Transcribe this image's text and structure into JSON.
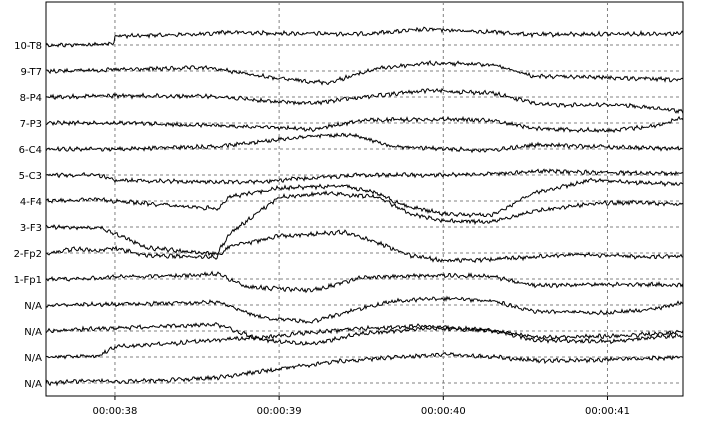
{
  "chart_data": {
    "type": "line",
    "title": "",
    "xlabel": "",
    "ylabel": "",
    "grid": true,
    "x_ticks": [
      "00:00:38",
      "00:00:39",
      "00:00:40",
      "00:00:41"
    ],
    "x_range": [
      "00:00:37.58",
      "00:00:41.46"
    ],
    "channel_labels": [
      "10-T8",
      "9-T7",
      "8-P4",
      "7-P3",
      "6-C4",
      "5-C3",
      "4-F4",
      "3-F3",
      "2-Fp2",
      "1-Fp1",
      "N/A",
      "N/A",
      "N/A",
      "N/A"
    ],
    "series": [
      {
        "name": "10-T8",
        "points": [
          [
            37.6,
            0
          ],
          [
            37.99,
            0.05
          ],
          [
            38.0,
            0.7
          ],
          [
            38.6,
            0.85
          ],
          [
            38.62,
            1.0
          ],
          [
            39.0,
            0.9
          ],
          [
            39.5,
            0.85
          ],
          [
            39.9,
            1.2
          ],
          [
            40.3,
            1.0
          ],
          [
            40.55,
            0.8
          ],
          [
            41.1,
            0.85
          ],
          [
            41.46,
            0.9
          ]
        ]
      },
      {
        "name": "9-T7",
        "points": [
          [
            37.6,
            0
          ],
          [
            38.0,
            0.1
          ],
          [
            38.55,
            0.25
          ],
          [
            38.62,
            0.15
          ],
          [
            39.0,
            -0.6
          ],
          [
            39.3,
            -0.9
          ],
          [
            39.6,
            0.2
          ],
          [
            39.9,
            0.6
          ],
          [
            40.3,
            0.5
          ],
          [
            40.55,
            -0.4
          ],
          [
            41.0,
            -0.5
          ],
          [
            41.46,
            -0.7
          ]
        ]
      },
      {
        "name": "8-P4",
        "points": [
          [
            37.6,
            0
          ],
          [
            38.0,
            0.1
          ],
          [
            38.62,
            0.05
          ],
          [
            38.9,
            -0.3
          ],
          [
            39.2,
            -0.5
          ],
          [
            39.5,
            0
          ],
          [
            39.9,
            0.5
          ],
          [
            40.3,
            0.3
          ],
          [
            40.6,
            -0.6
          ],
          [
            41.1,
            -0.6
          ],
          [
            41.3,
            -0.9
          ],
          [
            41.46,
            -1.1
          ]
        ]
      },
      {
        "name": "7-P3",
        "points": [
          [
            37.6,
            0
          ],
          [
            38.0,
            0
          ],
          [
            38.62,
            -0.2
          ],
          [
            38.9,
            -0.3
          ],
          [
            39.2,
            -0.5
          ],
          [
            39.5,
            0.2
          ],
          [
            40.0,
            0.3
          ],
          [
            40.3,
            0.2
          ],
          [
            40.55,
            -0.4
          ],
          [
            41.0,
            -0.6
          ],
          [
            41.3,
            -0.2
          ],
          [
            41.46,
            0.4
          ]
        ]
      },
      {
        "name": "6-C4",
        "points": [
          [
            37.6,
            0
          ],
          [
            38.0,
            0
          ],
          [
            38.62,
            0.2
          ],
          [
            38.9,
            0.6
          ],
          [
            39.2,
            1.0
          ],
          [
            39.45,
            1.05
          ],
          [
            39.7,
            0.2
          ],
          [
            40.0,
            0
          ],
          [
            40.3,
            -0.1
          ],
          [
            40.55,
            0.3
          ],
          [
            40.9,
            0.2
          ],
          [
            41.2,
            0.1
          ],
          [
            41.46,
            0
          ]
        ]
      },
      {
        "name": "5-C3",
        "points": [
          [
            37.6,
            0
          ],
          [
            37.9,
            0
          ],
          [
            38.0,
            -0.4
          ],
          [
            38.62,
            -0.55
          ],
          [
            38.9,
            -0.5
          ],
          [
            39.2,
            -0.2
          ],
          [
            39.5,
            0
          ],
          [
            40.0,
            0
          ],
          [
            40.3,
            0.1
          ],
          [
            40.6,
            0.3
          ],
          [
            40.9,
            0.2
          ],
          [
            41.2,
            0.15
          ],
          [
            41.46,
            0.1
          ]
        ]
      },
      {
        "name": "4-F4",
        "points": [
          [
            37.6,
            0
          ],
          [
            37.9,
            0.1
          ],
          [
            38.0,
            0
          ],
          [
            38.62,
            -0.6
          ],
          [
            38.7,
            0.3
          ],
          [
            39.0,
            1.0
          ],
          [
            39.4,
            1.15
          ],
          [
            39.6,
            0.6
          ],
          [
            39.75,
            -0.3
          ],
          [
            40.0,
            -1.0
          ],
          [
            40.3,
            -1.1
          ],
          [
            40.55,
            0.6
          ],
          [
            40.9,
            1.6
          ],
          [
            41.2,
            1.4
          ],
          [
            41.46,
            1.3
          ]
        ]
      },
      {
        "name": "3-F3",
        "points": [
          [
            37.6,
            0
          ],
          [
            37.9,
            -0.05
          ],
          [
            38.0,
            -0.5
          ],
          [
            38.2,
            -1.6
          ],
          [
            38.62,
            -2.1
          ],
          [
            38.7,
            -0.5
          ],
          [
            39.0,
            2.3
          ],
          [
            39.3,
            2.6
          ],
          [
            39.6,
            2.3
          ],
          [
            39.8,
            1.0
          ],
          [
            40.0,
            0.5
          ],
          [
            40.3,
            0.4
          ],
          [
            40.55,
            1.2
          ],
          [
            40.9,
            1.8
          ],
          [
            41.2,
            1.9
          ],
          [
            41.46,
            1.7
          ]
        ]
      },
      {
        "name": "2-Fp2",
        "points": [
          [
            37.6,
            0
          ],
          [
            37.75,
            0.3
          ],
          [
            37.9,
            0.2
          ],
          [
            38.0,
            0.35
          ],
          [
            38.2,
            -0.2
          ],
          [
            38.62,
            -0.3
          ],
          [
            38.7,
            0.5
          ],
          [
            39.0,
            1.3
          ],
          [
            39.4,
            1.6
          ],
          [
            39.6,
            0.8
          ],
          [
            39.8,
            -0.2
          ],
          [
            40.0,
            -0.6
          ],
          [
            40.3,
            -0.5
          ],
          [
            40.55,
            -0.3
          ],
          [
            40.8,
            -0.1
          ],
          [
            41.2,
            -0.3
          ],
          [
            41.46,
            -0.2
          ]
        ]
      },
      {
        "name": "1-Fp1",
        "points": [
          [
            37.6,
            0
          ],
          [
            37.9,
            0.05
          ],
          [
            38.0,
            0.2
          ],
          [
            38.4,
            0.25
          ],
          [
            38.62,
            0.4
          ],
          [
            38.8,
            -0.6
          ],
          [
            39.2,
            -0.9
          ],
          [
            39.5,
            0.1
          ],
          [
            40.0,
            0.3
          ],
          [
            40.3,
            0.2
          ],
          [
            40.55,
            -0.5
          ],
          [
            40.9,
            -0.45
          ],
          [
            41.2,
            -0.4
          ],
          [
            41.46,
            -0.5
          ]
        ]
      },
      {
        "name": "N/A",
        "points": [
          [
            37.6,
            0
          ],
          [
            37.9,
            0.05
          ],
          [
            38.2,
            0.1
          ],
          [
            38.62,
            0.2
          ],
          [
            38.9,
            -1.0
          ],
          [
            39.2,
            -1.3
          ],
          [
            39.45,
            -0.4
          ],
          [
            39.7,
            0.3
          ],
          [
            40.0,
            0.5
          ],
          [
            40.3,
            0.3
          ],
          [
            40.55,
            -0.5
          ],
          [
            41.0,
            -0.6
          ],
          [
            41.3,
            -0.3
          ],
          [
            41.46,
            0.2
          ]
        ]
      },
      {
        "name": "N/A",
        "points": [
          [
            37.6,
            0
          ],
          [
            37.9,
            0.2
          ],
          [
            38.2,
            0.3
          ],
          [
            38.62,
            0.5
          ],
          [
            38.9,
            -0.7
          ],
          [
            39.2,
            -1.0
          ],
          [
            39.5,
            -0.2
          ],
          [
            39.9,
            0.2
          ],
          [
            40.3,
            0.1
          ],
          [
            40.55,
            -0.7
          ],
          [
            41.0,
            -0.8
          ],
          [
            41.46,
            -0.3
          ]
        ]
      },
      {
        "name": "N/A",
        "points": [
          [
            37.6,
            0
          ],
          [
            37.9,
            0.1
          ],
          [
            38.0,
            0.8
          ],
          [
            38.3,
            1.0
          ],
          [
            38.62,
            1.3
          ],
          [
            38.9,
            1.5
          ],
          [
            39.2,
            1.9
          ],
          [
            39.5,
            2.2
          ],
          [
            39.9,
            2.4
          ],
          [
            40.3,
            2.0
          ],
          [
            40.6,
            1.5
          ],
          [
            41.0,
            1.6
          ],
          [
            41.3,
            1.8
          ],
          [
            41.46,
            1.9
          ]
        ]
      },
      {
        "name": "N/A",
        "points": [
          [
            37.6,
            0
          ],
          [
            37.9,
            0.2
          ],
          [
            38.0,
            0.1
          ],
          [
            38.3,
            0.2
          ],
          [
            38.62,
            0.4
          ],
          [
            38.9,
            0.9
          ],
          [
            39.3,
            1.6
          ],
          [
            39.6,
            1.9
          ],
          [
            40.0,
            2.2
          ],
          [
            40.3,
            2.0
          ],
          [
            40.6,
            1.7
          ],
          [
            41.0,
            1.8
          ],
          [
            41.46,
            2.0
          ]
        ]
      }
    ]
  }
}
